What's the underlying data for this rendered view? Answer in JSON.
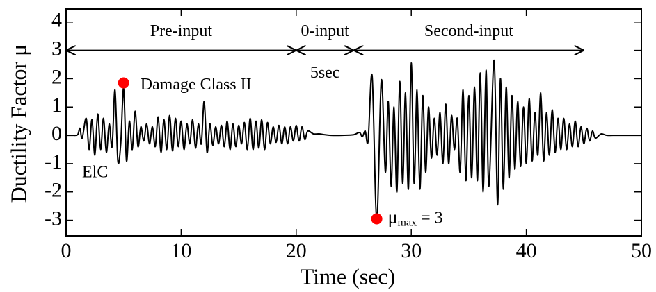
{
  "chart_data": {
    "type": "line",
    "xlabel": "Time (sec)",
    "ylabel": "Ductility Factor μ",
    "color": "#000000",
    "xlim": [
      0,
      50
    ],
    "ylim": [
      -3.55,
      4.46
    ],
    "xticks": [
      0,
      10,
      20,
      30,
      40,
      50
    ],
    "yticks": [
      -3,
      -2,
      -1,
      0,
      1,
      2,
      3,
      4
    ],
    "x": [
      0,
      0.5,
      1,
      1.2,
      1.4,
      1.75,
      2,
      2.25,
      2.5,
      2.75,
      3,
      3.25,
      3.5,
      3.75,
      4,
      4.25,
      4.5,
      4.75,
      5,
      5.25,
      5.5,
      5.75,
      6,
      6.25,
      6.5,
      6.75,
      7,
      7.25,
      7.5,
      7.75,
      8,
      8.25,
      8.5,
      8.75,
      9,
      9.25,
      9.5,
      9.75,
      10,
      10.25,
      10.5,
      10.75,
      11,
      11.25,
      11.5,
      11.75,
      12,
      12.25,
      12.5,
      12.75,
      13,
      13.25,
      13.5,
      13.75,
      14,
      14.25,
      14.5,
      14.75,
      15,
      15.25,
      15.5,
      15.75,
      16,
      16.25,
      16.5,
      16.75,
      17,
      17.25,
      17.5,
      17.75,
      18,
      18.25,
      18.5,
      18.75,
      19,
      19.25,
      19.5,
      19.75,
      20,
      20.25,
      20.5,
      20.75,
      21,
      21.5,
      22,
      22.5,
      23,
      24,
      25,
      25.5,
      25.75,
      26,
      26.25,
      26.6,
      27,
      27.4,
      27.75,
      28,
      28.25,
      28.5,
      28.75,
      29,
      29.25,
      29.5,
      29.75,
      30,
      30.25,
      30.5,
      30.75,
      31,
      31.25,
      31.5,
      31.75,
      32,
      32.25,
      32.5,
      32.75,
      33,
      33.25,
      33.5,
      33.75,
      34,
      34.25,
      34.5,
      34.75,
      35,
      35.25,
      35.5,
      35.75,
      36,
      36.25,
      36.5,
      36.75,
      37.2,
      37.5,
      37.75,
      38,
      38.25,
      38.5,
      38.75,
      39,
      39.25,
      39.5,
      39.75,
      40,
      40.25,
      40.5,
      40.75,
      41,
      41.25,
      41.5,
      41.75,
      42,
      42.25,
      42.5,
      42.75,
      43,
      43.25,
      43.5,
      43.75,
      44,
      44.25,
      44.5,
      44.75,
      45,
      45.25,
      45.5,
      45.75,
      46,
      46.5,
      47,
      48,
      50
    ],
    "values": [
      0,
      0,
      0.02,
      0.25,
      -0.1,
      0.6,
      -0.5,
      0.55,
      -0.7,
      0.75,
      -0.5,
      0.6,
      -0.6,
      0.4,
      -0.4,
      1.6,
      -0.9,
      -0.3,
      1.65,
      -0.9,
      0.5,
      -0.5,
      0.85,
      -0.4,
      0.3,
      -0.2,
      0.4,
      -0.3,
      0.3,
      -0.4,
      0.65,
      -0.6,
      0.55,
      -0.5,
      0.7,
      -0.55,
      0.6,
      -0.4,
      0.5,
      -0.5,
      0.4,
      -0.3,
      0.55,
      -0.45,
      0.4,
      -0.3,
      1.2,
      -0.6,
      0.4,
      -0.35,
      0.3,
      -0.3,
      0.35,
      -0.4,
      0.5,
      -0.5,
      0.4,
      -0.4,
      0.35,
      -0.3,
      0.45,
      -0.5,
      0.6,
      -0.5,
      0.5,
      -0.45,
      0.55,
      -0.5,
      0.45,
      -0.3,
      0.3,
      -0.25,
      0.35,
      -0.3,
      0.3,
      -0.3,
      0.3,
      -0.2,
      0.35,
      -0.2,
      0.3,
      -0.15,
      0.15,
      0.05,
      0.05,
      0.02,
      0,
      0,
      0.02,
      0.1,
      -0.05,
      0.15,
      -0.2,
      2.1,
      -3.0,
      1.95,
      -1.3,
      1.2,
      -1.8,
      1.0,
      -2.0,
      1.9,
      -1.7,
      1.5,
      -1.9,
      2.55,
      -1.7,
      1.6,
      -1.9,
      1.4,
      -1.3,
      1.0,
      -0.8,
      0.6,
      -0.7,
      0.8,
      -1.0,
      1.1,
      -1.0,
      0.7,
      -0.5,
      0.6,
      -1.3,
      1.6,
      -1.6,
      1.4,
      -1.5,
      1.7,
      -1.6,
      2.2,
      -2.0,
      2.3,
      -1.8,
      2.65,
      -2.45,
      2.0,
      -1.9,
      1.7,
      -1.5,
      1.4,
      -1.2,
      1.2,
      -1.1,
      1.0,
      -1.0,
      1.3,
      -0.9,
      0.8,
      -0.7,
      1.5,
      -0.9,
      0.8,
      -0.7,
      0.9,
      -0.6,
      0.6,
      -0.5,
      0.6,
      -0.5,
      0.4,
      -0.4,
      0.5,
      -0.4,
      0.3,
      -0.3,
      0.25,
      -0.2,
      0.15,
      -0.1,
      0.05,
      0,
      0,
      0
    ],
    "phases": [
      {
        "label": "Pre-input",
        "start": 0,
        "end": 20,
        "level": 3
      },
      {
        "label": "0-input",
        "note": "5sec",
        "start": 20,
        "end": 25,
        "level": 3
      },
      {
        "label": "Second-input",
        "start": 25,
        "end": 45,
        "level": 3
      }
    ],
    "markers": [
      {
        "label": "Damage Class II",
        "x": 5,
        "y": 1.85,
        "color": "#ff0000"
      },
      {
        "label": {
          "symbol": "μ",
          "sub": "max",
          "rest": " = 3"
        },
        "x": 27,
        "y": -2.95,
        "color": "#ff0000"
      }
    ],
    "annotations": [
      "ElC"
    ]
  }
}
